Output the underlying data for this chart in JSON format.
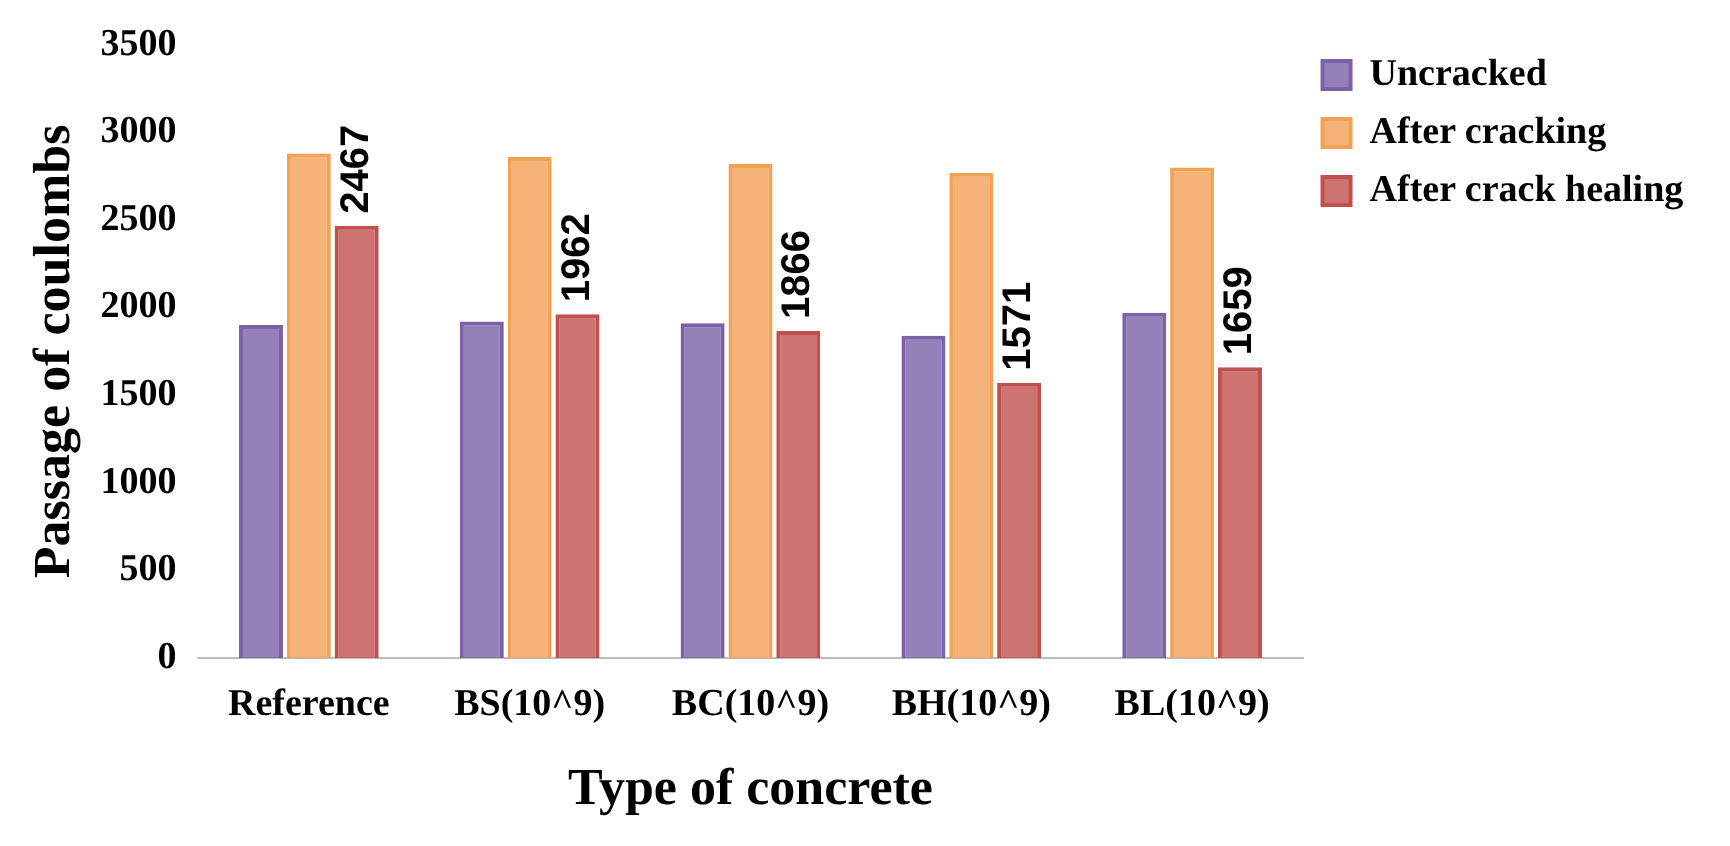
{
  "chart_data": {
    "type": "bar",
    "xlabel": "Type of concrete",
    "ylabel": "Passage of coulombs",
    "categories": [
      "Reference",
      "BS(10^9)",
      "BC(10^9)",
      "BH(10^9)",
      "BL(10^9)"
    ],
    "series": [
      {
        "name": "Uncracked",
        "color": "#7b62a8",
        "values": [
          1900,
          1920,
          1910,
          1840,
          1970
        ]
      },
      {
        "name": "After cracking",
        "color": "#f4a055",
        "values": [
          2880,
          2860,
          2820,
          2770,
          2800
        ]
      },
      {
        "name": "After crack healing",
        "color": "#c0504d",
        "values": [
          2467,
          1962,
          1866,
          1571,
          1659
        ],
        "value_labels": [
          "2467",
          "1962",
          "1866",
          "1571",
          "1659"
        ]
      }
    ],
    "ylim": [
      0,
      3500
    ],
    "yticks": [
      0,
      500,
      1000,
      1500,
      2000,
      2500,
      3000,
      3500
    ],
    "grid": false,
    "legend": "top right"
  }
}
